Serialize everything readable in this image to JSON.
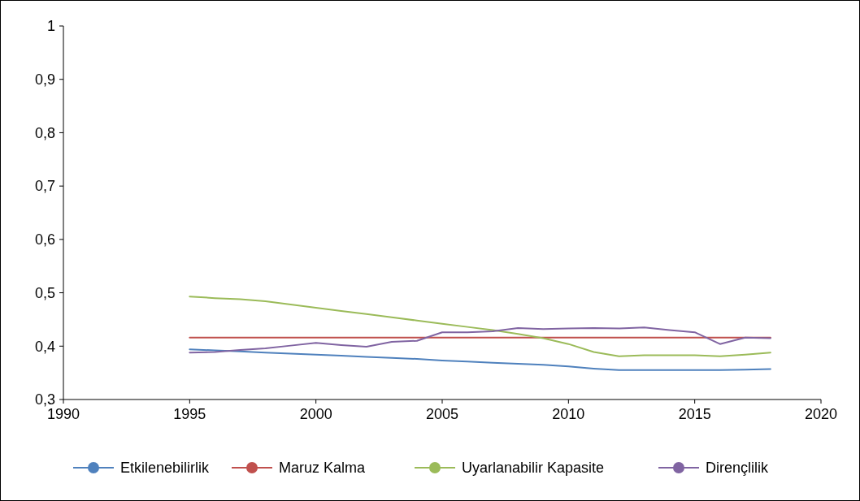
{
  "chart_data": {
    "type": "line",
    "x": [
      1995,
      1996,
      1997,
      1998,
      1999,
      2000,
      2001,
      2002,
      2003,
      2004,
      2005,
      2006,
      2007,
      2008,
      2009,
      2010,
      2011,
      2012,
      2013,
      2014,
      2015,
      2016,
      2017,
      2018
    ],
    "series": [
      {
        "name": "Etkilenebilirlik",
        "color": "#4f81bd",
        "values": [
          0.394,
          0.392,
          0.39,
          0.388,
          0.386,
          0.384,
          0.382,
          0.38,
          0.378,
          0.376,
          0.373,
          0.371,
          0.369,
          0.367,
          0.365,
          0.362,
          0.358,
          0.355,
          0.355,
          0.355,
          0.355,
          0.355,
          0.356,
          0.357
        ]
      },
      {
        "name": "Maruz Kalma",
        "color": "#c0504d",
        "values": [
          0.416,
          0.416,
          0.416,
          0.416,
          0.416,
          0.416,
          0.416,
          0.416,
          0.416,
          0.416,
          0.416,
          0.416,
          0.416,
          0.416,
          0.416,
          0.416,
          0.416,
          0.416,
          0.416,
          0.416,
          0.416,
          0.416,
          0.416,
          0.416
        ]
      },
      {
        "name": "Uyarlanabilir Kapasite",
        "color": "#9bbb59",
        "values": [
          0.493,
          0.49,
          0.488,
          0.484,
          0.478,
          0.472,
          0.466,
          0.46,
          0.454,
          0.448,
          0.442,
          0.436,
          0.43,
          0.423,
          0.415,
          0.404,
          0.389,
          0.381,
          0.383,
          0.383,
          0.383,
          0.381,
          0.384,
          0.388
        ]
      },
      {
        "name": "Dirençlilik",
        "color": "#8064a2",
        "values": [
          0.388,
          0.389,
          0.393,
          0.396,
          0.401,
          0.406,
          0.402,
          0.399,
          0.408,
          0.41,
          0.426,
          0.426,
          0.428,
          0.434,
          0.432,
          0.433,
          0.434,
          0.433,
          0.435,
          0.43,
          0.426,
          0.404,
          0.416,
          0.415
        ]
      }
    ],
    "xlim": [
      1990,
      2020
    ],
    "xticks": [
      1990,
      1995,
      2000,
      2005,
      2010,
      2015,
      2020
    ],
    "ylim": [
      0.3,
      1
    ],
    "yticks": [
      {
        "value": 0.3,
        "label": "0,3"
      },
      {
        "value": 0.4,
        "label": "0,4"
      },
      {
        "value": 0.5,
        "label": "0,5"
      },
      {
        "value": 0.6,
        "label": "0,6"
      },
      {
        "value": 0.7,
        "label": "0,7"
      },
      {
        "value": 0.8,
        "label": "0,8"
      },
      {
        "value": 0.9,
        "label": "0,9"
      },
      1
    ],
    "legend": "bottom",
    "grid": false,
    "marker": "none",
    "line_style": "solid"
  }
}
